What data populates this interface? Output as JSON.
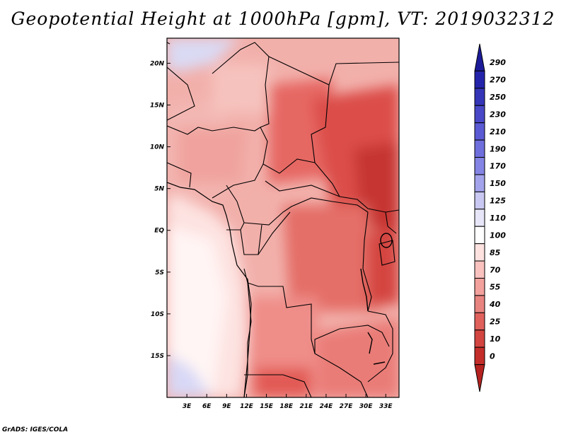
{
  "title": "Geopotential Height at 1000hPa [gpm], VT: 2019032312",
  "credit": "GrADS: IGES/COLA",
  "map": {
    "lat_ticks": [
      "20N",
      "15N",
      "10N",
      "5N",
      "EQ",
      "5S",
      "10S",
      "15S"
    ],
    "lon_ticks": [
      "3E",
      "6E",
      "9E",
      "12E",
      "15E",
      "18E",
      "21E",
      "24E",
      "27E",
      "30E",
      "33E"
    ],
    "lat_range": [
      -20,
      23
    ],
    "lon_range": [
      0,
      35
    ]
  },
  "colorbar": {
    "labels": [
      "290",
      "270",
      "250",
      "230",
      "210",
      "190",
      "170",
      "150",
      "125",
      "110",
      "100",
      "85",
      "70",
      "55",
      "40",
      "25",
      "10",
      "0"
    ],
    "colors": [
      "#1b1b99",
      "#2424ab",
      "#3535b8",
      "#4848c8",
      "#5a5ad4",
      "#6e6edd",
      "#8484e4",
      "#a3a3ec",
      "#c8c8f2",
      "#e6e6f8",
      "#ffffff",
      "#fde2e0",
      "#f9c2bf",
      "#f3a19d",
      "#e88480",
      "#e0605c",
      "#d34540",
      "#c42e2a",
      "#b52220"
    ]
  }
}
